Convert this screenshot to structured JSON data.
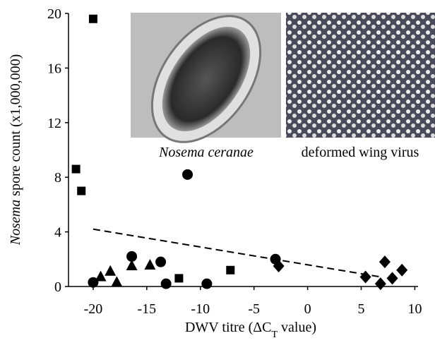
{
  "chart_data": {
    "type": "scatter",
    "x_label": {
      "part1": "DWV titre (ΔC",
      "sub": "T",
      "part2": " value)"
    },
    "y_label": {
      "italic": "Nosema",
      "rest": " spore count (x1,000,000)"
    },
    "image_captions": [
      "Nosema ceranae",
      "deformed wing virus"
    ],
    "xlim": [
      -22.3,
      10.3
    ],
    "ylim": [
      0,
      20
    ],
    "xticks": [
      -20,
      -15,
      -10,
      -5,
      0,
      5,
      10
    ],
    "yticks": [
      0,
      4,
      8,
      12,
      16,
      20
    ],
    "series": [
      {
        "marker": "square",
        "color": "#000000",
        "x": [
          -21.1,
          -21.6,
          -20.0,
          -12.0,
          -7.2
        ],
        "values": [
          7.0,
          8.6,
          19.6,
          0.6,
          1.2
        ]
      },
      {
        "marker": "triangle",
        "color": "#000000",
        "x": [
          -19.3,
          -18.4,
          -17.8,
          -16.4,
          -14.7
        ],
        "values": [
          0.7,
          1.1,
          0.3,
          1.5,
          1.55
        ]
      },
      {
        "marker": "circle",
        "color": "#000000",
        "x": [
          -20.0,
          -16.4,
          -13.7,
          -13.2,
          -11.2,
          -9.4,
          -3.0
        ],
        "values": [
          0.3,
          2.2,
          1.8,
          0.2,
          8.2,
          0.2,
          2.0
        ]
      },
      {
        "marker": "diamond",
        "color": "#000000",
        "x": [
          -2.7,
          5.4,
          6.8,
          7.2,
          7.9,
          8.8
        ],
        "values": [
          1.5,
          0.7,
          0.2,
          1.8,
          0.6,
          1.2
        ]
      }
    ],
    "trendline": {
      "x": [
        -20,
        6.8
      ],
      "values": [
        4.2,
        0.7
      ]
    }
  }
}
